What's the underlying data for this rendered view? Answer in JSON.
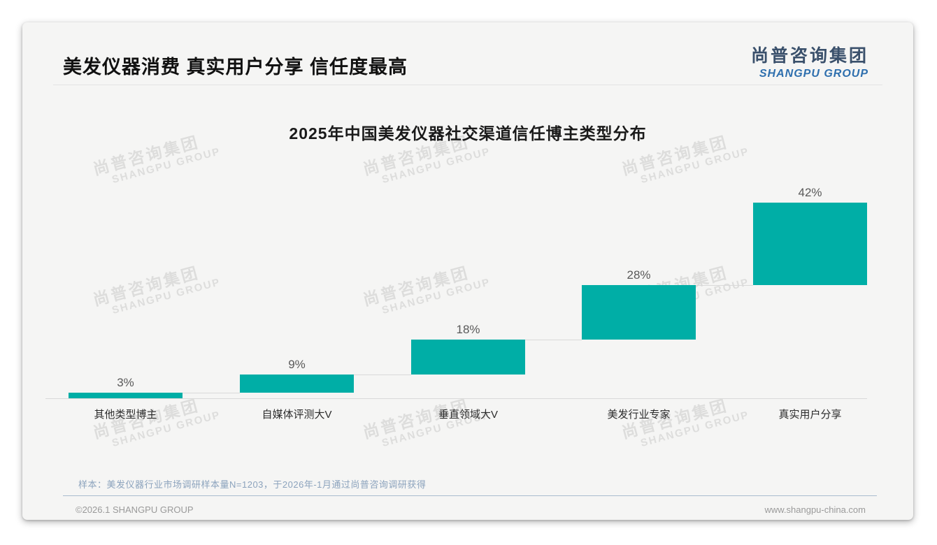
{
  "page": {
    "title": "美发仪器消费 真实用户分享 信任度最高",
    "logo": {
      "cn": "尚普咨询集团",
      "en": "SHANGPU GROUP"
    },
    "watermark": {
      "cn": "尚普咨询集团",
      "en": "SHANGPU GROUP"
    },
    "note": "样本：美发仪器行业市场调研样本量N=1203，于2026年-1月通过尚普咨询调研获得",
    "footer": {
      "left": "©2026.1 SHANGPU GROUP",
      "right": "www.shangpu-china.com"
    }
  },
  "colors": {
    "bar": "#00aea6",
    "percent_label": "#595959",
    "category_label": "#2b2b2b",
    "connector": "#d9d9d9",
    "note_text": "#8ca3bd",
    "note_divider": "#a9bccf",
    "footer_text": "#9a9a9a"
  },
  "chart_data": {
    "type": "bar",
    "subtype": "waterfall-steps",
    "title": "2025年中国美发仪器社交渠道信任博主类型分布",
    "categories": [
      "其他类型博主",
      "自媒体评测大V",
      "垂直领域大V",
      "美发行业专家",
      "真实用户分享"
    ],
    "values": [
      3,
      9,
      18,
      28,
      42
    ],
    "data_labels": [
      "3%",
      "9%",
      "18%",
      "28%",
      "42%"
    ],
    "cumulative_start": [
      0,
      3,
      12,
      30,
      58
    ],
    "cumulative_end": [
      3,
      12,
      30,
      58,
      100
    ],
    "unit": "%",
    "ylim": [
      0,
      100
    ],
    "grid": false,
    "legend": false,
    "layout_hint": "each bar rises from the cumulative total of the previous bars; thin gray step connectors link consecutive bars; single gray baseline axis; no y-axis shown"
  }
}
